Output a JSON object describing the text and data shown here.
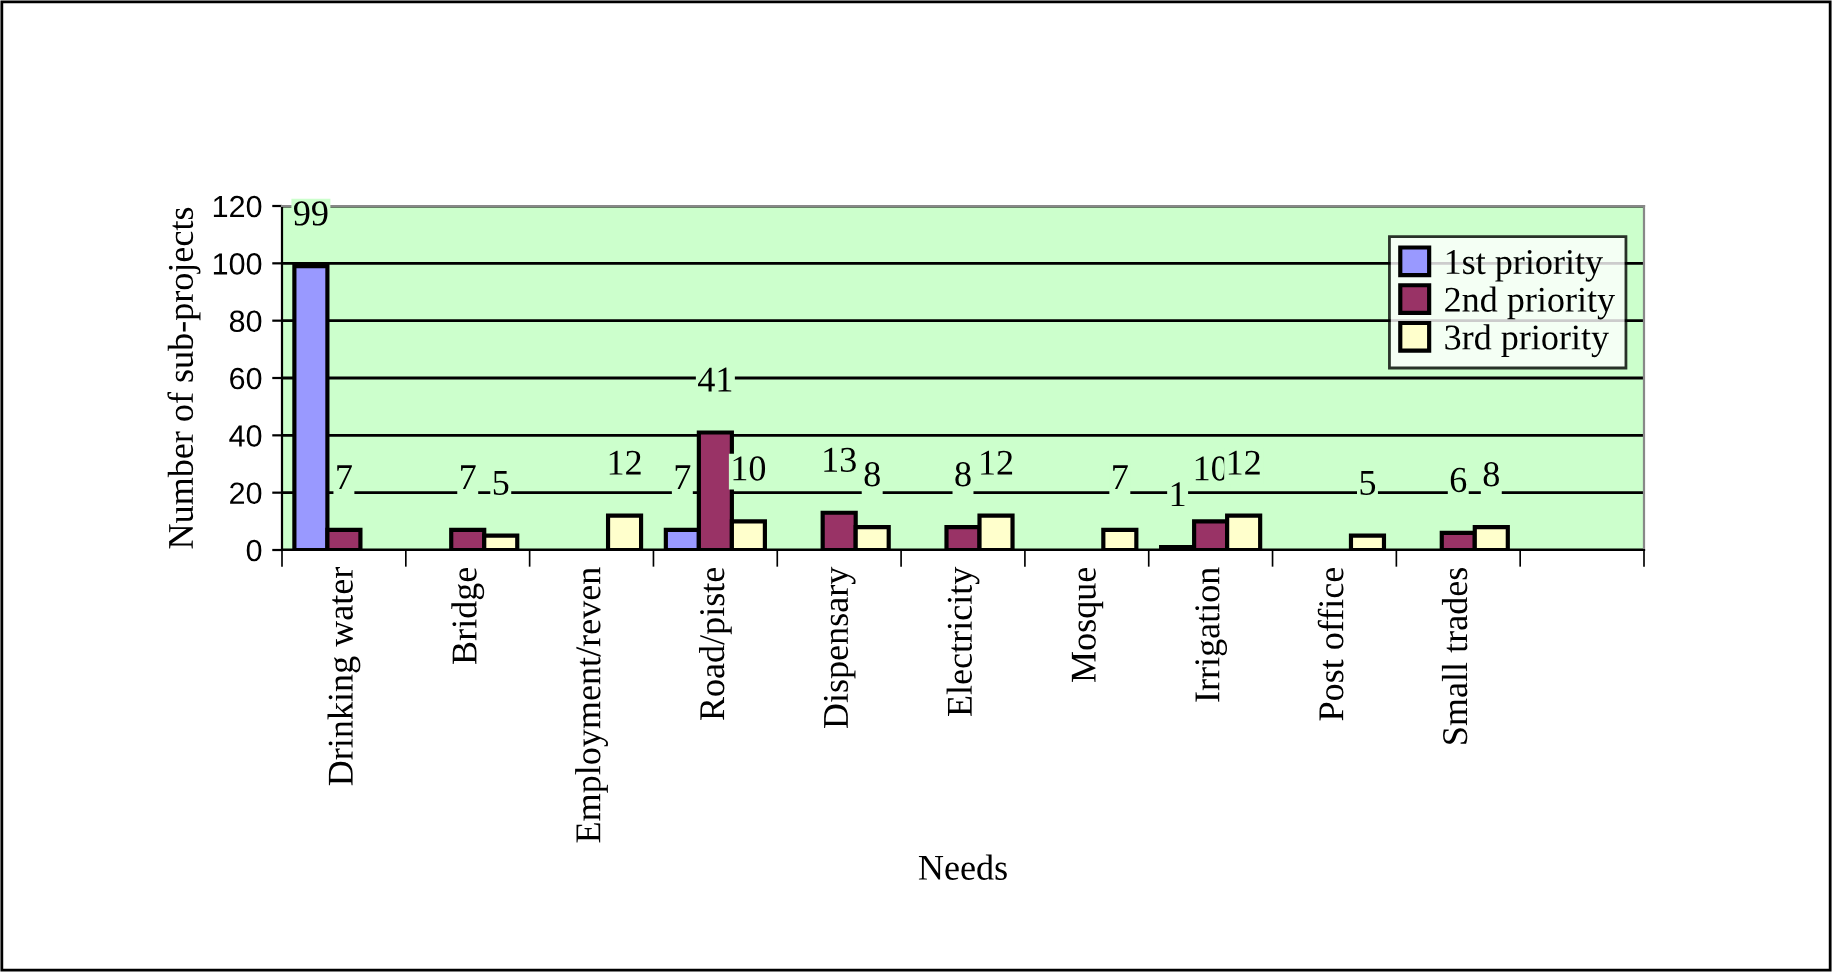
{
  "chart_data": {
    "type": "bar",
    "xlabel": "Needs",
    "ylabel": "Number of sub-projects",
    "categories": [
      "Drinking water",
      "Bridge",
      "Employment/reven",
      "Road/piste",
      "Dispensary",
      "Electricity",
      "Mosque",
      "Irrigation",
      "Post office",
      "Small trades",
      null
    ],
    "series": [
      {
        "name": "1st priority",
        "color": "#9999ff",
        "values": [
          99,
          null,
          null,
          7,
          null,
          null,
          null,
          1,
          null,
          null,
          null
        ]
      },
      {
        "name": "2nd priority",
        "color": "#993366",
        "values": [
          7,
          7,
          null,
          41,
          13,
          8,
          null,
          10,
          null,
          6,
          null
        ]
      },
      {
        "name": "3rd priority",
        "color": "#ffffcc",
        "values": [
          null,
          5,
          12,
          10,
          8,
          12,
          7,
          12,
          5,
          8,
          null
        ]
      }
    ],
    "ylim": [
      0,
      120
    ],
    "yticks": [
      0,
      20,
      40,
      60,
      80,
      100,
      120
    ],
    "grid": "y",
    "legend": "right",
    "data_labels": true
  }
}
